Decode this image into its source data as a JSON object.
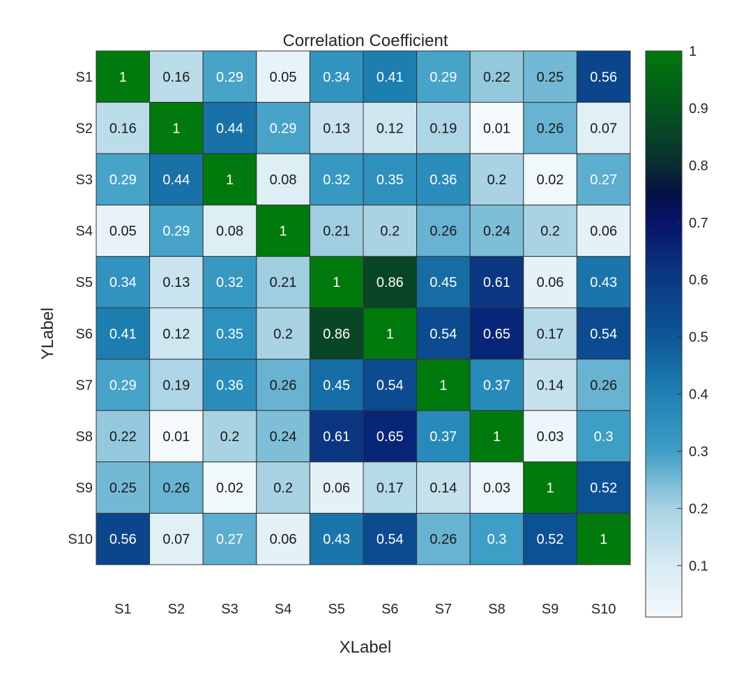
{
  "chart_data": {
    "type": "heatmap",
    "title": "Correlation Coefficient",
    "xlabel": "XLabel",
    "ylabel": "YLabel",
    "x_categories": [
      "S1",
      "S2",
      "S3",
      "S4",
      "S5",
      "S6",
      "S7",
      "S8",
      "S9",
      "S10"
    ],
    "y_categories": [
      "S1",
      "S2",
      "S3",
      "S4",
      "S5",
      "S6",
      "S7",
      "S8",
      "S9",
      "S10"
    ],
    "values": [
      [
        1,
        0.16,
        0.29,
        0.05,
        0.34,
        0.41,
        0.29,
        0.22,
        0.25,
        0.56
      ],
      [
        0.16,
        1,
        0.44,
        0.29,
        0.13,
        0.12,
        0.19,
        0.01,
        0.26,
        0.07
      ],
      [
        0.29,
        0.44,
        1,
        0.08,
        0.32,
        0.35,
        0.36,
        0.2,
        0.02,
        0.27
      ],
      [
        0.05,
        0.29,
        0.08,
        1,
        0.21,
        0.2,
        0.26,
        0.24,
        0.2,
        0.06
      ],
      [
        0.34,
        0.13,
        0.32,
        0.21,
        1,
        0.86,
        0.45,
        0.61,
        0.06,
        0.43
      ],
      [
        0.41,
        0.12,
        0.35,
        0.2,
        0.86,
        1,
        0.54,
        0.65,
        0.17,
        0.54
      ],
      [
        0.29,
        0.19,
        0.36,
        0.26,
        0.45,
        0.54,
        1,
        0.37,
        0.14,
        0.26
      ],
      [
        0.22,
        0.01,
        0.2,
        0.24,
        0.61,
        0.65,
        0.37,
        1,
        0.03,
        0.3
      ],
      [
        0.25,
        0.26,
        0.02,
        0.2,
        0.06,
        0.17,
        0.14,
        0.03,
        1,
        0.52
      ],
      [
        0.56,
        0.07,
        0.27,
        0.06,
        0.43,
        0.54,
        0.26,
        0.3,
        0.52,
        1
      ]
    ],
    "colorbar": {
      "range": [
        0.01,
        1
      ],
      "ticks": [
        0.1,
        0.2,
        0.3,
        0.4,
        0.5,
        0.6,
        0.7,
        0.8,
        0.9,
        1
      ],
      "tick_labels": [
        "0.1",
        "0.2",
        "0.3",
        "0.4",
        "0.5",
        "0.6",
        "0.7",
        "0.8",
        "0.9",
        "1"
      ],
      "colormap_stops": [
        {
          "value": 0.0,
          "color": "#f7fbfd"
        },
        {
          "value": 0.1,
          "color": "#d7ebf2"
        },
        {
          "value": 0.2,
          "color": "#a9d3e3"
        },
        {
          "value": 0.3,
          "color": "#3d9ec6"
        },
        {
          "value": 0.4,
          "color": "#1f82b3"
        },
        {
          "value": 0.5,
          "color": "#0d5796"
        },
        {
          "value": 0.6,
          "color": "#0a3a85"
        },
        {
          "value": 0.7,
          "color": "#07136a"
        },
        {
          "value": 0.75,
          "color": "#050f45"
        },
        {
          "value": 0.8,
          "color": "#0a2d31"
        },
        {
          "value": 0.9,
          "color": "#06561e"
        },
        {
          "value": 1.0,
          "color": "#007a0c"
        }
      ],
      "legend_placement": "right"
    }
  }
}
